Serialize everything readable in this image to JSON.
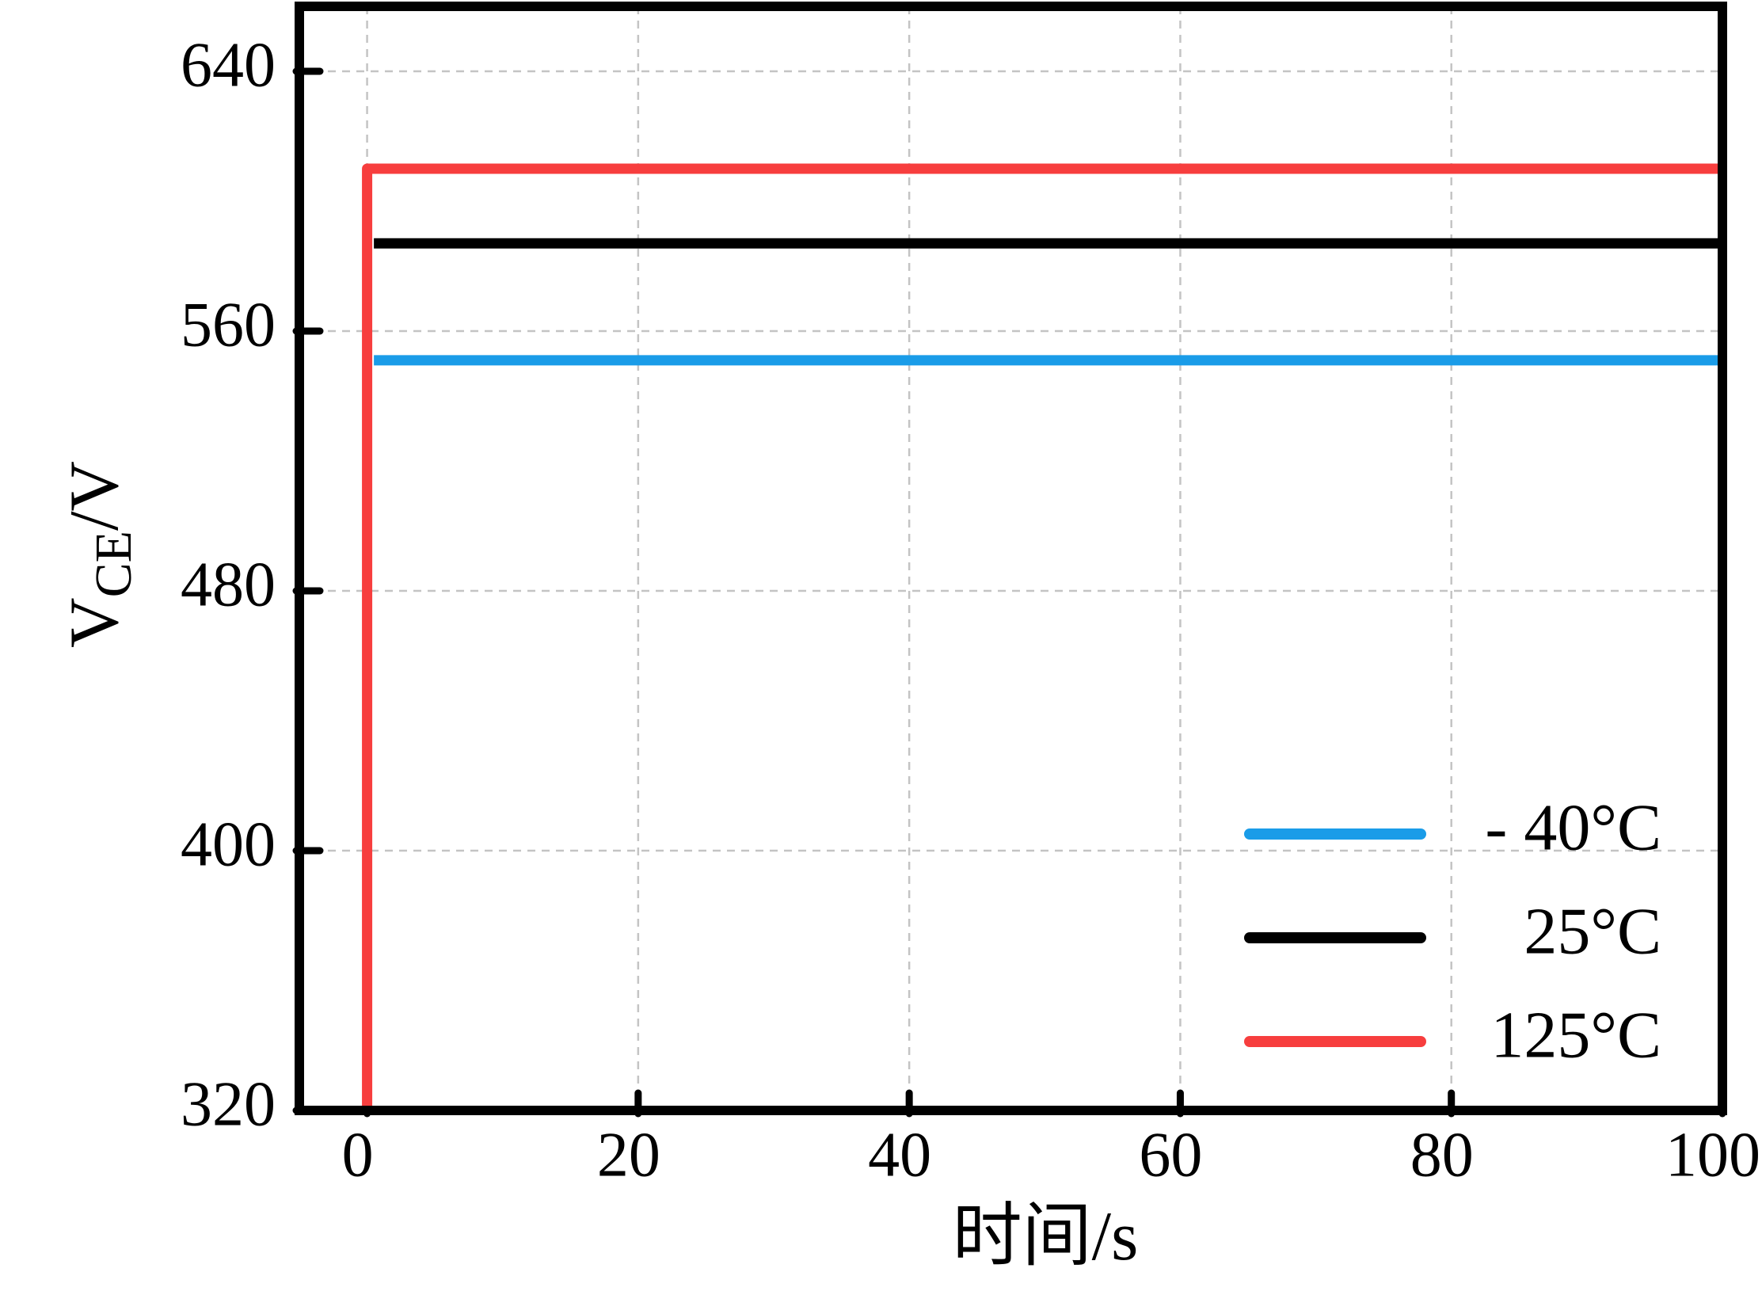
{
  "chart_data": {
    "type": "line",
    "xlabel": "时间/s",
    "ylabel": {
      "main": "V",
      "sub": "CE",
      "unit": "/V"
    },
    "xlim": [
      -5,
      100
    ],
    "xticks": [
      0,
      20,
      40,
      60,
      80,
      100
    ],
    "ylim": [
      320,
      660
    ],
    "yticks": [
      320,
      400,
      480,
      560,
      640
    ],
    "grid": true,
    "legend": "lower right",
    "series": [
      {
        "name": "- 40°C",
        "color": "#1a9ce8",
        "x": [
          0.5,
          100
        ],
        "values": [
          551,
          551
        ]
      },
      {
        "name": "25°C",
        "color": "#000000",
        "x": [
          0.5,
          100
        ],
        "values": [
          587,
          587
        ]
      },
      {
        "name": "125°C",
        "color": "#f73e3e",
        "x": [
          0,
          0,
          100
        ],
        "values": [
          320,
          610,
          610
        ]
      }
    ]
  }
}
